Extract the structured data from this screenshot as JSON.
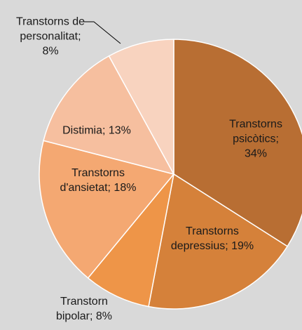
{
  "chart_data": {
    "type": "pie",
    "values": [
      34,
      19,
      8,
      18,
      13,
      8
    ],
    "value_labels": [
      "Transtorns\npsicòtics; 34%",
      "Transtorns\ndepressius; 19%",
      "Transtorn\nbipolar; 8%",
      "Transtorns\nd'ansietat; 18%",
      "Distimia; 13%",
      "Transtorns de\npersonalitat;\n8%"
    ],
    "colors": [
      "#b86e33",
      "#d5813a",
      "#ee9548",
      "#f4a872",
      "#f6bf9f",
      "#f8d3bf"
    ]
  }
}
